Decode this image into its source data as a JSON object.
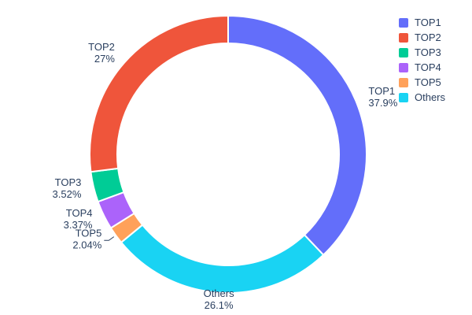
{
  "chart_data": {
    "type": "pie",
    "subtype": "donut",
    "hole_ratio": 0.8,
    "direction": "clockwise",
    "start_position": "12-oclock",
    "title": "",
    "categories": [
      "TOP1",
      "TOP2",
      "TOP3",
      "TOP4",
      "TOP5",
      "Others"
    ],
    "values": [
      37.9,
      27,
      3.52,
      3.37,
      2.04,
      26.1
    ],
    "percent_labels": [
      "37.9%",
      "27%",
      "3.52%",
      "3.37%",
      "2.04%",
      "26.1%"
    ],
    "colors": [
      "#636EFA",
      "#EF553B",
      "#00CC96",
      "#AB63FA",
      "#FFA15A",
      "#19D3F3"
    ],
    "draw_order": [
      0,
      5,
      4,
      3,
      2,
      1
    ],
    "legend_position": "top-right",
    "legend_items": [
      "TOP1",
      "TOP2",
      "TOP3",
      "TOP4",
      "TOP5",
      "Others"
    ],
    "label_color": "#2a3f5f",
    "background": "#ffffff"
  }
}
